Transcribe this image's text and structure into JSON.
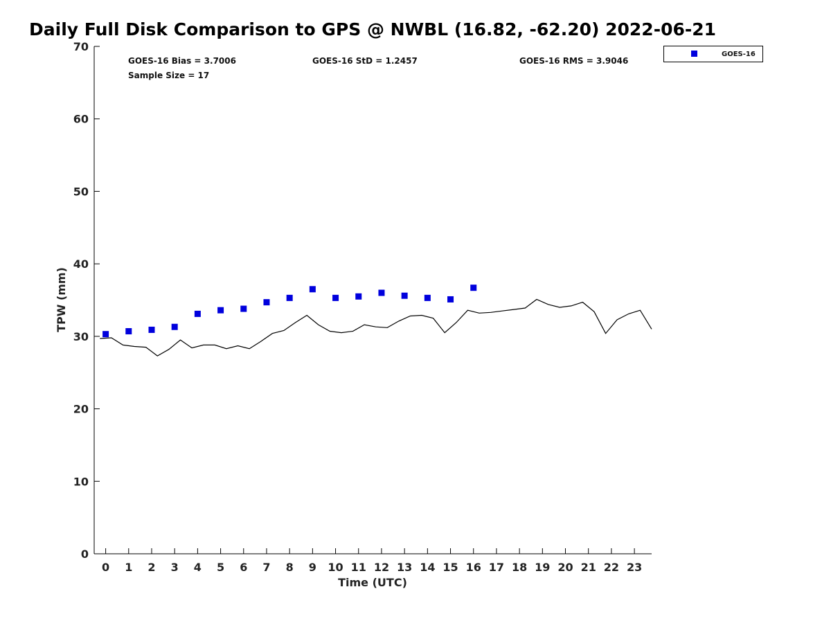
{
  "chart_data": {
    "type": "scatter",
    "title": "Daily Full Disk Comparison to GPS @ NWBL (16.82, -62.20) 2022-06-21",
    "xlabel": "Time (UTC)",
    "ylabel": "TPW (mm)",
    "xlim": [
      -0.5,
      23.75
    ],
    "ylim": [
      0,
      70
    ],
    "xticks": [
      "0",
      "1",
      "2",
      "3",
      "4",
      "5",
      "6",
      "7",
      "8",
      "9",
      "10",
      "11",
      "12",
      "13",
      "14",
      "15",
      "16",
      "17",
      "18",
      "19",
      "20",
      "21",
      "22",
      "23"
    ],
    "yticks": [
      "0",
      "10",
      "20",
      "30",
      "40",
      "50",
      "60",
      "70"
    ],
    "grid": false,
    "legend_position": "top-right outside",
    "stats": {
      "bias": "GOES-16 Bias = 3.7006",
      "std": "GOES-16 StD = 1.2457",
      "rms": "GOES-16 RMS = 3.9046",
      "sample": "Sample Size = 17"
    },
    "series": [
      {
        "name": "GOES-16",
        "kind": "scatter",
        "marker": "square",
        "color": "#0000dd",
        "x": [
          0,
          1,
          2,
          3,
          4,
          5,
          6,
          7,
          8,
          9,
          10,
          11,
          12,
          13,
          14,
          15,
          16
        ],
        "y": [
          30.3,
          30.7,
          30.9,
          31.3,
          33.1,
          33.6,
          33.8,
          34.7,
          35.3,
          36.5,
          35.3,
          35.5,
          36.0,
          35.6,
          35.3,
          35.1,
          36.7
        ]
      },
      {
        "kind": "line",
        "color": "#000000",
        "x": [
          -0.25,
          0.25,
          0.75,
          1.25,
          1.75,
          2.25,
          2.75,
          3.25,
          3.75,
          4.25,
          4.75,
          5.25,
          5.75,
          6.25,
          6.75,
          7.25,
          7.75,
          8.25,
          8.75,
          9.25,
          9.75,
          10.25,
          10.75,
          11.25,
          11.75,
          12.25,
          12.75,
          13.25,
          13.75,
          14.25,
          14.75,
          15.25,
          15.75,
          16.25,
          16.75,
          17.25,
          17.75,
          18.25,
          18.75,
          19.25,
          19.75,
          20.25,
          20.75,
          21.25,
          21.75,
          22.25,
          22.75,
          23.25,
          23.75
        ],
        "y": [
          29.7,
          29.8,
          28.8,
          28.6,
          28.5,
          27.3,
          28.2,
          29.5,
          28.4,
          28.8,
          28.8,
          28.3,
          28.7,
          28.3,
          29.3,
          30.4,
          30.8,
          31.9,
          32.9,
          31.6,
          30.7,
          30.5,
          30.7,
          31.6,
          31.3,
          31.2,
          32.1,
          32.8,
          32.9,
          32.5,
          30.5,
          31.9,
          33.6,
          33.2,
          33.3,
          33.5,
          33.7,
          33.9,
          35.1,
          34.4,
          34.0,
          34.2,
          34.7,
          33.4,
          30.4,
          32.3,
          33.1,
          33.6,
          31.0
        ]
      }
    ]
  }
}
